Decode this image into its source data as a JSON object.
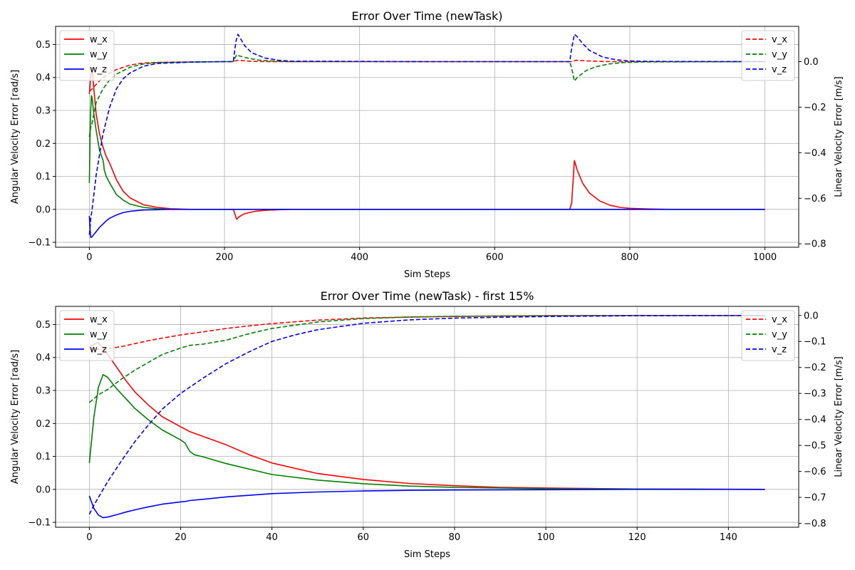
{
  "chart_data": [
    {
      "type": "line",
      "title": "Error Over Time (newTask)",
      "xlabel": "Sim Steps",
      "ylabel_left": "Angular Velocity Error [rad/s]",
      "ylabel_right": "Linear Velocity Error [m/s]",
      "xlim": [
        -50,
        1050
      ],
      "ylim_left": [
        -0.115,
        0.555
      ],
      "ylim_right": [
        -0.815,
        0.155
      ],
      "x_ticks": [
        0,
        200,
        400,
        600,
        800,
        1000
      ],
      "y_ticks_left": [
        -0.1,
        0.0,
        0.1,
        0.2,
        0.3,
        0.4,
        0.5
      ],
      "y_ticks_right": [
        -0.8,
        -0.6,
        -0.4,
        -0.2,
        0.0
      ],
      "x_tick_labels": [
        "0",
        "200",
        "400",
        "600",
        "800",
        "1000"
      ],
      "y_tick_labels_left": [
        "−0.1",
        "0.0",
        "0.1",
        "0.2",
        "0.3",
        "0.4",
        "0.5"
      ],
      "y_tick_labels_right": [
        "−0.8",
        "−0.6",
        "−0.4",
        "−0.2",
        "0.0"
      ],
      "grid": true,
      "legend_left_placement": "upper left",
      "legend_right_placement": "upper right",
      "series": [
        {
          "name": "w_x",
          "axis": "left",
          "color": "#ff0000",
          "dash": false,
          "x": [
            0,
            2,
            4,
            6,
            10,
            15,
            20,
            25,
            30,
            40,
            50,
            60,
            80,
            100,
            120,
            150,
            200,
            213,
            218,
            222,
            230,
            245,
            260,
            280,
            300,
            400,
            500,
            600,
            700,
            711,
            714,
            718,
            722,
            730,
            740,
            755,
            770,
            785,
            800,
            830,
            860,
            900,
            1000
          ],
          "y": [
            0.35,
            0.4,
            0.43,
            0.38,
            0.29,
            0.23,
            0.19,
            0.16,
            0.14,
            0.09,
            0.055,
            0.035,
            0.014,
            0.006,
            0.002,
            0.0,
            0.0,
            0.0,
            -0.03,
            -0.022,
            -0.013,
            -0.006,
            -0.003,
            -0.001,
            0.0,
            0.0,
            0.0,
            0.0,
            0.0,
            0.0,
            0.02,
            0.148,
            0.12,
            0.08,
            0.05,
            0.026,
            0.013,
            0.006,
            0.003,
            0.001,
            0.0,
            0.0,
            0.0
          ]
        },
        {
          "name": "w_y",
          "axis": "left",
          "color": "#008000",
          "dash": false,
          "x": [
            0,
            1,
            2,
            3,
            4,
            6,
            10,
            15,
            20,
            21,
            22,
            25,
            30,
            40,
            50,
            60,
            80,
            100,
            120,
            150,
            200,
            400,
            600,
            800,
            1000
          ],
          "y": [
            0.08,
            0.22,
            0.3,
            0.345,
            0.34,
            0.3,
            0.24,
            0.18,
            0.15,
            0.14,
            0.12,
            0.1,
            0.08,
            0.045,
            0.028,
            0.016,
            0.006,
            0.002,
            0.0,
            0.0,
            0.0,
            0.0,
            0.0,
            0.0,
            0.0
          ]
        },
        {
          "name": "w_z",
          "axis": "left",
          "color": "#0000ff",
          "dash": false,
          "x": [
            0,
            1,
            2,
            3,
            4,
            6,
            10,
            15,
            20,
            25,
            30,
            40,
            50,
            60,
            80,
            100,
            120,
            150,
            200,
            400,
            600,
            800,
            1000
          ],
          "y": [
            -0.02,
            -0.06,
            -0.085,
            -0.085,
            -0.083,
            -0.078,
            -0.068,
            -0.055,
            -0.045,
            -0.035,
            -0.027,
            -0.017,
            -0.01,
            -0.006,
            -0.002,
            -0.001,
            0.0,
            0.0,
            0.0,
            0.0,
            0.0,
            0.0,
            0.0
          ]
        },
        {
          "name": "v_x",
          "axis": "right",
          "color": "#ff0000",
          "dash": true,
          "x": [
            0,
            4,
            10,
            20,
            30,
            40,
            60,
            80,
            100,
            150,
            200,
            210,
            220,
            230,
            240,
            260,
            280,
            300,
            500,
            700,
            715,
            720,
            740,
            760,
            780,
            800,
            1000
          ],
          "y": [
            -0.13,
            -0.12,
            -0.1,
            -0.07,
            -0.05,
            -0.035,
            -0.015,
            -0.006,
            -0.003,
            -0.001,
            0.0,
            0.0,
            0.006,
            0.004,
            0.0015,
            0.0005,
            0.0,
            0.0,
            0.0,
            0.0,
            0.0,
            0.006,
            0.003,
            0.001,
            0.0,
            0.0,
            0.0
          ]
        },
        {
          "name": "v_y",
          "axis": "right",
          "color": "#008000",
          "dash": true,
          "x": [
            0,
            1,
            2,
            4,
            10,
            20,
            30,
            40,
            60,
            80,
            100,
            200,
            213,
            218,
            222,
            235,
            250,
            270,
            300,
            500,
            700,
            711,
            714,
            718,
            722,
            735,
            750,
            770,
            790,
            820,
            1000
          ],
          "y": [
            -0.33,
            -0.31,
            -0.29,
            -0.27,
            -0.18,
            -0.12,
            -0.08,
            -0.055,
            -0.025,
            -0.01,
            -0.004,
            0.0,
            0.0,
            0.03,
            0.025,
            0.015,
            0.007,
            0.003,
            0.0,
            0.0,
            0.0,
            0.0,
            -0.03,
            -0.085,
            -0.07,
            -0.04,
            -0.022,
            -0.01,
            -0.004,
            -0.001,
            0.0
          ]
        },
        {
          "name": "v_z",
          "axis": "right",
          "color": "#0000ff",
          "dash": true,
          "x": [
            0,
            1,
            2,
            4,
            10,
            20,
            30,
            40,
            50,
            60,
            80,
            100,
            150,
            200,
            213,
            217,
            220,
            224,
            230,
            240,
            260,
            280,
            300,
            500,
            700,
            711,
            714,
            718,
            722,
            730,
            740,
            760,
            780,
            800,
            830,
            1000
          ],
          "y": [
            -0.76,
            -0.73,
            -0.69,
            -0.65,
            -0.5,
            -0.32,
            -0.2,
            -0.12,
            -0.075,
            -0.05,
            -0.02,
            -0.008,
            -0.002,
            0.0,
            0.0,
            0.09,
            0.12,
            0.1,
            0.07,
            0.04,
            0.016,
            0.006,
            0.002,
            0.0,
            0.0,
            0.0,
            0.06,
            0.12,
            0.11,
            0.08,
            0.05,
            0.02,
            0.008,
            0.003,
            0.001,
            0.0
          ]
        }
      ]
    },
    {
      "type": "line",
      "title": "Error Over Time (newTask) - first 15%",
      "xlabel": "Sim Steps",
      "ylabel_left": "Angular Velocity Error [rad/s]",
      "ylabel_right": "Linear Velocity Error [m/s]",
      "xlim": [
        -7.4,
        155.4
      ],
      "ylim_left": [
        -0.115,
        0.555
      ],
      "ylim_right": [
        -0.815,
        0.035
      ],
      "x_ticks": [
        0,
        20,
        40,
        60,
        80,
        100,
        120,
        140
      ],
      "y_ticks_left": [
        -0.1,
        0.0,
        0.1,
        0.2,
        0.3,
        0.4,
        0.5
      ],
      "y_ticks_right": [
        -0.8,
        -0.7,
        -0.6,
        -0.5,
        -0.4,
        -0.3,
        -0.2,
        -0.1,
        0.0
      ],
      "x_tick_labels": [
        "0",
        "20",
        "40",
        "60",
        "80",
        "100",
        "120",
        "140"
      ],
      "y_tick_labels_left": [
        "−0.1",
        "0.0",
        "0.1",
        "0.2",
        "0.3",
        "0.4",
        "0.5"
      ],
      "y_tick_labels_right": [
        "−0.8",
        "−0.7",
        "−0.6",
        "−0.5",
        "−0.4",
        "−0.3",
        "−0.2",
        "−0.1",
        "0.0"
      ],
      "grid": true,
      "legend_left_placement": "upper left",
      "legend_right_placement": "upper right",
      "series": [
        {
          "name": "w_x",
          "axis": "left",
          "color": "#ff0000",
          "dash": false,
          "x": [
            0,
            1,
            2,
            3,
            4,
            6,
            8,
            10,
            13,
            16,
            20,
            22,
            25,
            30,
            35,
            40,
            50,
            60,
            70,
            80,
            90,
            100,
            120,
            148
          ],
          "y": [
            0.43,
            0.44,
            0.445,
            0.43,
            0.41,
            0.37,
            0.33,
            0.295,
            0.255,
            0.22,
            0.19,
            0.175,
            0.16,
            0.135,
            0.105,
            0.08,
            0.048,
            0.03,
            0.018,
            0.011,
            0.006,
            0.004,
            0.001,
            0.0
          ]
        },
        {
          "name": "w_y",
          "axis": "left",
          "color": "#008000",
          "dash": false,
          "x": [
            0,
            1,
            2,
            3,
            4,
            6,
            8,
            10,
            13,
            16,
            20,
            21,
            22,
            23,
            25,
            30,
            40,
            50,
            60,
            70,
            80,
            100,
            120,
            148
          ],
          "y": [
            0.08,
            0.22,
            0.31,
            0.348,
            0.34,
            0.305,
            0.275,
            0.245,
            0.21,
            0.18,
            0.15,
            0.14,
            0.115,
            0.105,
            0.098,
            0.078,
            0.045,
            0.028,
            0.017,
            0.01,
            0.006,
            0.002,
            0.001,
            0.0
          ]
        },
        {
          "name": "w_z",
          "axis": "left",
          "color": "#0000ff",
          "dash": false,
          "x": [
            0,
            1,
            2,
            3,
            4,
            6,
            8,
            10,
            13,
            16,
            20,
            21,
            22,
            25,
            30,
            40,
            50,
            60,
            70,
            80,
            100,
            120,
            148
          ],
          "y": [
            -0.02,
            -0.058,
            -0.078,
            -0.086,
            -0.084,
            -0.077,
            -0.069,
            -0.062,
            -0.053,
            -0.045,
            -0.038,
            -0.037,
            -0.034,
            -0.03,
            -0.023,
            -0.013,
            -0.008,
            -0.005,
            -0.003,
            -0.002,
            -0.001,
            0.0,
            0.0
          ]
        },
        {
          "name": "v_x",
          "axis": "right",
          "color": "#ff0000",
          "dash": true,
          "x": [
            0,
            2,
            4,
            7,
            10,
            13,
            16,
            20,
            25,
            30,
            35,
            40,
            50,
            60,
            70,
            80,
            90,
            100,
            120,
            148
          ],
          "y": [
            -0.13,
            -0.13,
            -0.128,
            -0.12,
            -0.108,
            -0.097,
            -0.087,
            -0.075,
            -0.063,
            -0.05,
            -0.04,
            -0.031,
            -0.018,
            -0.01,
            -0.006,
            -0.004,
            -0.002,
            -0.001,
            0.0,
            0.0
          ]
        },
        {
          "name": "v_y",
          "axis": "right",
          "color": "#008000",
          "dash": true,
          "x": [
            0,
            1,
            2,
            4,
            7,
            10,
            13,
            16,
            20,
            22,
            25,
            30,
            35,
            40,
            50,
            60,
            70,
            80,
            90,
            100,
            120,
            148
          ],
          "y": [
            -0.335,
            -0.32,
            -0.305,
            -0.285,
            -0.245,
            -0.21,
            -0.18,
            -0.15,
            -0.125,
            -0.115,
            -0.11,
            -0.095,
            -0.07,
            -0.05,
            -0.025,
            -0.012,
            -0.006,
            -0.003,
            -0.002,
            -0.001,
            0.0,
            0.0
          ]
        },
        {
          "name": "v_z",
          "axis": "right",
          "color": "#0000ff",
          "dash": true,
          "x": [
            0,
            1,
            2,
            4,
            7,
            10,
            13,
            16,
            20,
            25,
            30,
            35,
            40,
            45,
            50,
            60,
            70,
            80,
            100,
            120,
            148
          ],
          "y": [
            -0.765,
            -0.73,
            -0.7,
            -0.64,
            -0.56,
            -0.485,
            -0.42,
            -0.36,
            -0.3,
            -0.24,
            -0.185,
            -0.14,
            -0.1,
            -0.075,
            -0.055,
            -0.03,
            -0.017,
            -0.01,
            -0.004,
            -0.001,
            0.0
          ]
        }
      ]
    }
  ]
}
